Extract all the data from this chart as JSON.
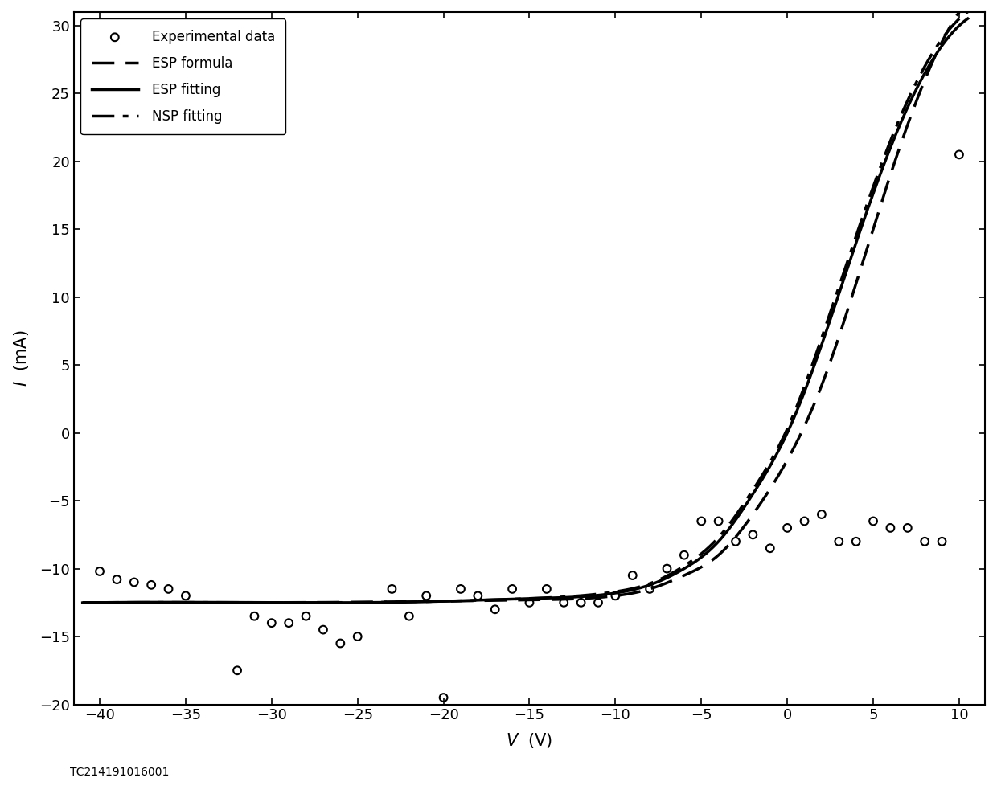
{
  "title": "",
  "xlabel": "V  (V)",
  "ylabel": "I  (mA)",
  "xlim": [
    -41.5,
    11.5
  ],
  "ylim": [
    -20,
    31
  ],
  "xticks": [
    -40,
    -35,
    -30,
    -25,
    -20,
    -15,
    -10,
    -5,
    0,
    5,
    10
  ],
  "yticks": [
    -20,
    -15,
    -10,
    -5,
    0,
    5,
    10,
    15,
    20,
    25,
    30
  ],
  "annotation": "TC214191016001",
  "esp_solid_Isat": -12.5,
  "esp_solid_Vf": -1.0,
  "esp_solid_Te": 3.5,
  "esp_dashed_Isat": -12.5,
  "esp_dashed_Vf": 1.5,
  "esp_dashed_Te": 3.5,
  "nsp_dashdot_Isat": -12.5,
  "nsp_dashdot_Vf": -1.0,
  "nsp_dashdot_Te": 3.5,
  "nsp_q": 1.3,
  "exp_x": [
    -40,
    -39,
    -38,
    -37,
    -36,
    -35,
    -32,
    -31,
    -30,
    -29,
    -28,
    -27,
    -26,
    -25,
    -23,
    -22,
    -21,
    -20,
    -19,
    -18,
    -17,
    -16,
    -15,
    -14,
    -13,
    -12,
    -11,
    -10,
    -9,
    -8,
    -7,
    -6,
    -5,
    -4,
    -3,
    -2,
    -1,
    0,
    1,
    2,
    3,
    4,
    5,
    6,
    7,
    8,
    9,
    10
  ],
  "exp_y": [
    -10.2,
    -10.8,
    -11.0,
    -11.2,
    -11.5,
    -12.0,
    -17.5,
    -13.5,
    -14.0,
    -14.0,
    -13.5,
    -14.5,
    -15.5,
    -15.0,
    -11.5,
    -13.5,
    -12.0,
    -19.5,
    -11.5,
    -12.0,
    -13.0,
    -11.5,
    -12.5,
    -11.5,
    -12.5,
    -12.5,
    -12.5,
    -12.0,
    -10.5,
    -11.5,
    -10.0,
    -9.0,
    -6.5,
    -6.5,
    -8.0,
    -7.5,
    -8.5,
    -7.0,
    -6.5,
    -6.0,
    -8.0,
    -8.0,
    -6.5,
    -7.0,
    -7.0,
    -8.0,
    -8.0,
    20.5
  ],
  "linewidth": 2.5,
  "markersize": 7,
  "fontsize_label": 15,
  "fontsize_tick": 13,
  "fontsize_legend": 12,
  "fontsize_annot": 10
}
